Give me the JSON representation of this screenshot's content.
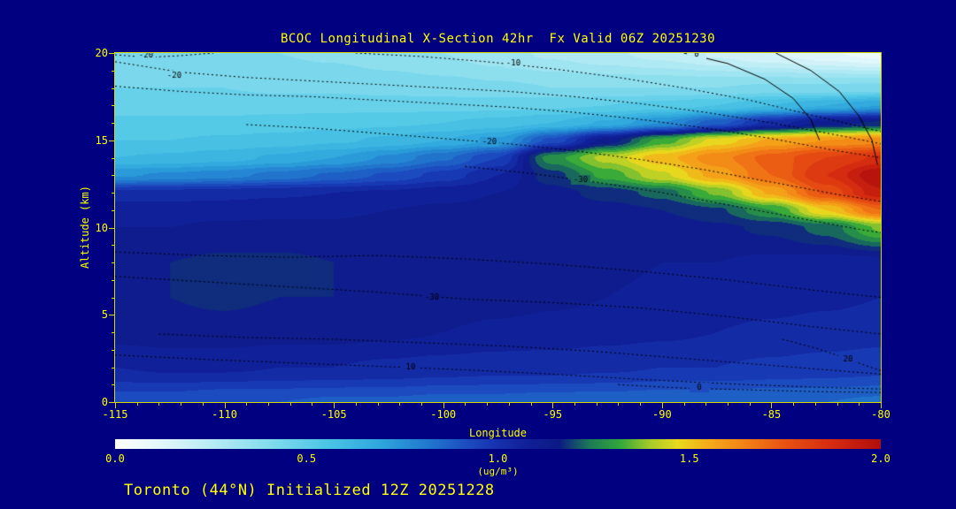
{
  "colors": {
    "background": "#000080",
    "text": "#ffff00",
    "frame": "#d8d800",
    "contour_line": "#000000"
  },
  "chart_data": {
    "type": "heatmap",
    "title": "BCOC Longitudinal X-Section 42hr  Fx Valid 06Z 20251230",
    "xlabel": "Longitude",
    "ylabel": "Altitude (km)",
    "footer": "Toronto (44°N) Initialized 12Z 20251228",
    "x_range": [
      -115,
      -80
    ],
    "y_range": [
      0,
      20
    ],
    "x_ticks": [
      -115,
      -110,
      -105,
      -100,
      -95,
      -90,
      -85,
      -80
    ],
    "y_ticks": [
      0,
      5,
      10,
      15,
      20
    ],
    "colorbar": {
      "min": 0.0,
      "max": 2.0,
      "ticks": [
        "0.0",
        "0.5",
        "1.0",
        "1.5",
        "2.0"
      ],
      "units": "(ug/m³)"
    },
    "colormap_stops": [
      [
        0.0,
        "#ffffff"
      ],
      [
        0.12,
        "#e2f7fb"
      ],
      [
        0.25,
        "#b8ecf5"
      ],
      [
        0.4,
        "#84dced"
      ],
      [
        0.55,
        "#4cc6e6"
      ],
      [
        0.7,
        "#2da4dc"
      ],
      [
        0.82,
        "#2176cd"
      ],
      [
        0.92,
        "#1c4cc0"
      ],
      [
        1.0,
        "#1630ae"
      ],
      [
        1.08,
        "#101f96"
      ],
      [
        1.16,
        "#0c1a86"
      ],
      [
        1.24,
        "#1c7a55"
      ],
      [
        1.32,
        "#33a83a"
      ],
      [
        1.4,
        "#a8cc28"
      ],
      [
        1.47,
        "#e8da1e"
      ],
      [
        1.55,
        "#f5ac1a"
      ],
      [
        1.65,
        "#f28016"
      ],
      [
        1.75,
        "#e85212"
      ],
      [
        1.87,
        "#d62c10"
      ],
      [
        2.0,
        "#b10e0e"
      ]
    ],
    "fill_level_step": 0.05,
    "grid": {
      "lons": [
        -115,
        -112.5,
        -110,
        -107.5,
        -105,
        -102.5,
        -100,
        -97.5,
        -95,
        -92.5,
        -90,
        -87.5,
        -85,
        -82.5,
        -80
      ],
      "alts": [
        0,
        2,
        4,
        6,
        8,
        10,
        11,
        12,
        13,
        14,
        15,
        16,
        17,
        18,
        20
      ],
      "values": [
        [
          0.92,
          1.05,
          1.12,
          1.14,
          1.14,
          1.1,
          1.08,
          1.02,
          0.74,
          0.6,
          0.55,
          0.51,
          0.48,
          0.45,
          0.41
        ],
        [
          0.92,
          1.06,
          1.13,
          1.15,
          1.15,
          1.1,
          1.08,
          1.02,
          0.76,
          0.61,
          0.55,
          0.51,
          0.48,
          0.45,
          0.41
        ],
        [
          0.9,
          1.06,
          1.13,
          1.16,
          1.16,
          1.11,
          1.08,
          1.03,
          0.78,
          0.63,
          0.56,
          0.51,
          0.48,
          0.45,
          0.4
        ],
        [
          0.9,
          1.05,
          1.12,
          1.15,
          1.16,
          1.11,
          1.09,
          1.04,
          0.82,
          0.66,
          0.57,
          0.52,
          0.48,
          0.44,
          0.4
        ],
        [
          0.89,
          1.05,
          1.12,
          1.15,
          1.15,
          1.11,
          1.09,
          1.05,
          0.86,
          0.7,
          0.59,
          0.53,
          0.48,
          0.44,
          0.39
        ],
        [
          0.89,
          1.04,
          1.11,
          1.14,
          1.15,
          1.12,
          1.1,
          1.06,
          0.91,
          0.76,
          0.61,
          0.54,
          0.48,
          0.43,
          0.37
        ],
        [
          0.88,
          1.03,
          1.1,
          1.13,
          1.14,
          1.12,
          1.11,
          1.08,
          0.97,
          0.84,
          0.65,
          0.55,
          0.48,
          0.42,
          0.35
        ],
        [
          0.88,
          1.02,
          1.09,
          1.12,
          1.13,
          1.12,
          1.12,
          1.1,
          1.05,
          0.95,
          0.71,
          0.57,
          0.48,
          0.41,
          0.32
        ],
        [
          0.87,
          1.02,
          1.08,
          1.11,
          1.12,
          1.12,
          1.12,
          1.13,
          1.18,
          1.28,
          0.92,
          0.6,
          0.49,
          0.4,
          0.29
        ],
        [
          0.87,
          1.01,
          1.07,
          1.1,
          1.11,
          1.12,
          1.13,
          1.17,
          1.32,
          1.42,
          1.12,
          0.66,
          0.5,
          0.4,
          0.26
        ],
        [
          0.86,
          1.0,
          1.06,
          1.09,
          1.1,
          1.12,
          1.15,
          1.22,
          1.44,
          1.53,
          1.32,
          0.75,
          0.52,
          0.4,
          0.23
        ],
        [
          0.86,
          1.0,
          1.05,
          1.08,
          1.1,
          1.14,
          1.19,
          1.36,
          1.57,
          1.63,
          1.47,
          0.88,
          0.55,
          0.4,
          0.19
        ],
        [
          0.85,
          0.99,
          1.04,
          1.07,
          1.09,
          1.16,
          1.3,
          1.56,
          1.7,
          1.72,
          1.56,
          1.02,
          0.6,
          0.41,
          0.15
        ],
        [
          0.85,
          0.98,
          1.03,
          1.06,
          1.08,
          1.22,
          1.5,
          1.76,
          1.85,
          1.8,
          1.6,
          1.12,
          0.65,
          0.41,
          0.11
        ],
        [
          0.84,
          0.97,
          1.02,
          1.05,
          1.08,
          1.36,
          1.7,
          1.94,
          2.0,
          1.86,
          1.62,
          1.16,
          0.7,
          0.42,
          0.07
        ]
      ]
    },
    "contours": [
      {
        "label": "-20",
        "style": "dotted",
        "label_at": [
          -113.6,
          19.85
        ],
        "points": [
          [
            -115,
            19.9
          ],
          [
            -113.5,
            19.75
          ],
          [
            -112,
            19.85
          ],
          [
            -110.5,
            20
          ]
        ]
      },
      {
        "label": "-20",
        "style": "dotted",
        "label_at": [
          -112.3,
          18.7
        ],
        "points": [
          [
            -115,
            19.5
          ],
          [
            -112,
            18.9
          ],
          [
            -109,
            18.6
          ],
          [
            -106,
            18.4
          ],
          [
            -103,
            18.2
          ],
          [
            -100,
            18.0
          ],
          [
            -97,
            17.8
          ],
          [
            -94,
            17.5
          ],
          [
            -91,
            17.1
          ],
          [
            -88,
            16.6
          ],
          [
            -85,
            16.0
          ],
          [
            -82,
            15.3
          ],
          [
            -80,
            14.8
          ]
        ]
      },
      {
        "label": "",
        "style": "dotted",
        "label_at": null,
        "points": [
          [
            -115,
            18.1
          ],
          [
            -112,
            17.8
          ],
          [
            -109,
            17.6
          ],
          [
            -106,
            17.5
          ],
          [
            -103,
            17.3
          ],
          [
            -100,
            17.1
          ],
          [
            -97,
            16.9
          ],
          [
            -94,
            16.6
          ],
          [
            -91,
            16.2
          ],
          [
            -88,
            15.7
          ],
          [
            -85,
            15.1
          ],
          [
            -82,
            14.4
          ],
          [
            -80,
            14.0
          ]
        ]
      },
      {
        "label": "-10",
        "style": "dotted",
        "label_at": [
          -96.8,
          19.4
        ],
        "points": [
          [
            -104,
            20
          ],
          [
            -101,
            19.8
          ],
          [
            -98,
            19.5
          ],
          [
            -95,
            19.1
          ],
          [
            -92,
            18.6
          ],
          [
            -89,
            18.0
          ],
          [
            -86,
            17.3
          ],
          [
            -83,
            16.4
          ],
          [
            -80,
            15.5
          ]
        ]
      },
      {
        "label": "0",
        "style": "solid",
        "label_at": [
          -88.4,
          19.9
        ],
        "points": [
          [
            -89,
            20
          ],
          [
            -87,
            19.4
          ],
          [
            -85.3,
            18.5
          ],
          [
            -84,
            17.4
          ],
          [
            -83.2,
            16.2
          ],
          [
            -82.8,
            15.0
          ]
        ]
      },
      {
        "label": "",
        "style": "solid",
        "label_at": null,
        "points": [
          [
            -84.8,
            20
          ],
          [
            -83.2,
            19.0
          ],
          [
            -81.9,
            17.8
          ],
          [
            -81.0,
            16.4
          ],
          [
            -80.4,
            15.0
          ],
          [
            -80.15,
            13.6
          ]
        ]
      },
      {
        "label": "-20",
        "style": "dotted",
        "label_at": [
          -97.9,
          14.9
        ],
        "points": [
          [
            -109,
            15.9
          ],
          [
            -106,
            15.7
          ],
          [
            -103,
            15.4
          ],
          [
            -100,
            15.1
          ],
          [
            -97,
            14.8
          ],
          [
            -94,
            14.4
          ],
          [
            -91,
            13.9
          ],
          [
            -88,
            13.3
          ],
          [
            -85,
            12.6
          ],
          [
            -82,
            11.9
          ],
          [
            -80,
            11.5
          ]
        ]
      },
      {
        "label": "-30",
        "style": "dotted",
        "label_at": [
          -93.7,
          12.7
        ],
        "points": [
          [
            -99,
            13.5
          ],
          [
            -96,
            13.1
          ],
          [
            -93,
            12.6
          ],
          [
            -90,
            12.0
          ],
          [
            -87,
            11.3
          ],
          [
            -84,
            10.6
          ],
          [
            -81,
            9.9
          ],
          [
            -80,
            9.7
          ]
        ]
      },
      {
        "label": "",
        "style": "dotted",
        "label_at": null,
        "points": [
          [
            -115,
            8.6
          ],
          [
            -111,
            8.4
          ],
          [
            -107,
            8.3
          ],
          [
            -103,
            8.4
          ],
          [
            -99,
            8.2
          ],
          [
            -95,
            7.9
          ],
          [
            -91,
            7.5
          ],
          [
            -87,
            7.0
          ],
          [
            -83,
            6.4
          ],
          [
            -80,
            6.0
          ]
        ]
      },
      {
        "label": "-30",
        "style": "dotted",
        "label_at": [
          -100.5,
          6.0
        ],
        "points": [
          [
            -115,
            7.2
          ],
          [
            -111,
            6.9
          ],
          [
            -107,
            6.6
          ],
          [
            -103,
            6.3
          ],
          [
            -99,
            5.9
          ],
          [
            -95,
            5.7
          ],
          [
            -91,
            5.4
          ],
          [
            -87,
            4.9
          ],
          [
            -83,
            4.3
          ],
          [
            -80,
            3.9
          ]
        ]
      },
      {
        "label": "",
        "style": "dotted",
        "label_at": null,
        "points": [
          [
            -113,
            3.9
          ],
          [
            -109,
            3.7
          ],
          [
            -105,
            3.6
          ],
          [
            -101,
            3.4
          ],
          [
            -97,
            3.2
          ],
          [
            -93,
            2.9
          ],
          [
            -89,
            2.5
          ],
          [
            -85,
            2.1
          ],
          [
            -81,
            1.7
          ],
          [
            -80,
            1.6
          ]
        ]
      },
      {
        "label": "10",
        "style": "dotted",
        "label_at": [
          -101.5,
          1.95
        ],
        "points": [
          [
            -115,
            2.7
          ],
          [
            -111,
            2.45
          ],
          [
            -107,
            2.25
          ],
          [
            -103,
            2.05
          ],
          [
            -99,
            1.85
          ],
          [
            -95,
            1.6
          ],
          [
            -91,
            1.3
          ],
          [
            -87,
            1.05
          ],
          [
            -83,
            0.85
          ],
          [
            -80,
            0.75
          ]
        ]
      },
      {
        "label": "0",
        "style": "dotted",
        "label_at": [
          -88.3,
          0.8
        ],
        "points": [
          [
            -92,
            1.0
          ],
          [
            -89,
            0.8
          ],
          [
            -86,
            0.7
          ],
          [
            -83,
            0.6
          ],
          [
            -80,
            0.55
          ]
        ]
      },
      {
        "label": "20",
        "style": "dotted",
        "label_at": [
          -81.5,
          2.45
        ],
        "points": [
          [
            -84.5,
            3.6
          ],
          [
            -83,
            3.1
          ],
          [
            -81.8,
            2.6
          ],
          [
            -80.7,
            2.1
          ],
          [
            -80,
            1.8
          ]
        ]
      }
    ]
  }
}
